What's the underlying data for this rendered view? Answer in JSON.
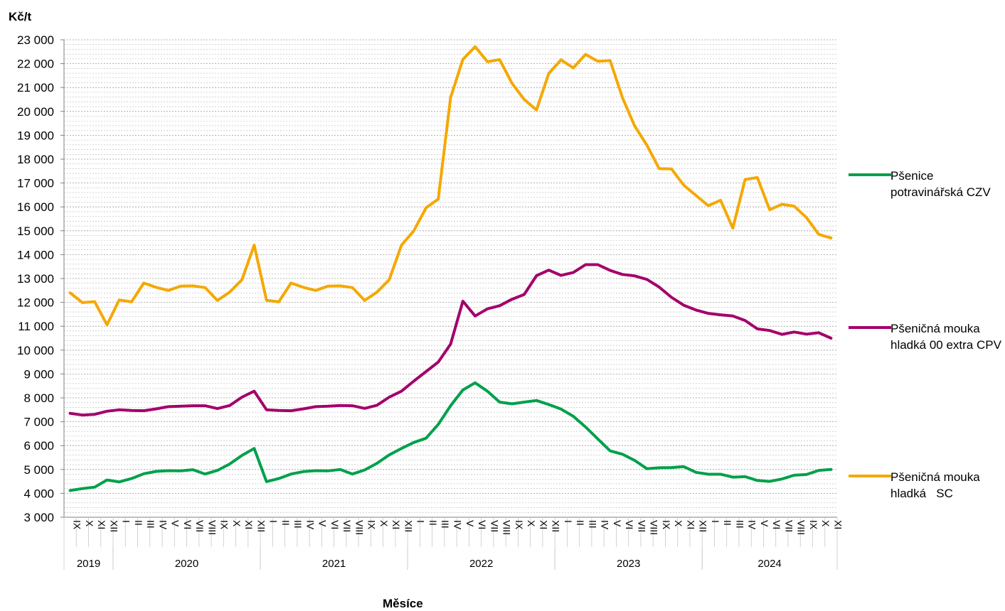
{
  "chart_data": {
    "type": "line",
    "ylabel": "Kč/t",
    "xlabel": "Měsíce",
    "ylim": [
      3000,
      23000
    ],
    "ytick_step": 1000,
    "y_tick_labels": [
      "3 000",
      "4 000",
      "5 000",
      "6 000",
      "7 000",
      "8 000",
      "9 000",
      "10 000",
      "11 000",
      "12 000",
      "13 000",
      "14 000",
      "15 000",
      "16 000",
      "17 000",
      "18 000",
      "19 000",
      "20 000",
      "21 000",
      "22 000",
      "23 000"
    ],
    "grid": "horizontal dashed minor lines",
    "legend_position": "right",
    "months": [
      "IX",
      "X",
      "XI",
      "XII",
      "I",
      "II",
      "III",
      "IV",
      "V",
      "VI",
      "VII",
      "VIII",
      "IX",
      "X",
      "XI",
      "XII",
      "I",
      "II",
      "III",
      "IV",
      "V",
      "VI",
      "VII",
      "VIII",
      "IX",
      "X",
      "XI",
      "XII",
      "I",
      "II",
      "III",
      "IV",
      "V",
      "VI",
      "VII",
      "VIII",
      "IX",
      "X",
      "XI",
      "XII",
      "I",
      "II",
      "III",
      "IV",
      "V",
      "VI",
      "VII",
      "VIII",
      "IX",
      "X",
      "XI",
      "XII",
      "I",
      "II",
      "III",
      "IV",
      "V",
      "VI",
      "VII",
      "VIII",
      "IX",
      "X",
      "XI"
    ],
    "years": [
      {
        "label": "2019",
        "start": 0,
        "count": 4
      },
      {
        "label": "2020",
        "start": 4,
        "count": 12
      },
      {
        "label": "2021",
        "start": 16,
        "count": 12
      },
      {
        "label": "2022",
        "start": 28,
        "count": 12
      },
      {
        "label": "2023",
        "start": 40,
        "count": 12
      },
      {
        "label": "2024",
        "start": 52,
        "count": 11
      }
    ],
    "series": [
      {
        "name": "Pšenice potravinářská CZV",
        "color": "#00a04b",
        "values": [
          4120,
          4200,
          4260,
          4560,
          4480,
          4620,
          4820,
          4920,
          4950,
          4940,
          4990,
          4810,
          4960,
          5230,
          5590,
          5880,
          4490,
          4620,
          4810,
          4910,
          4950,
          4940,
          5000,
          4810,
          4980,
          5260,
          5610,
          5880,
          6130,
          6310,
          6890,
          7670,
          8330,
          8630,
          8280,
          7820,
          7750,
          7820,
          7890,
          7720,
          7530,
          7230,
          6780,
          6280,
          5780,
          5640,
          5380,
          5030,
          5070,
          5080,
          5120,
          4880,
          4800,
          4800,
          4680,
          4700,
          4540,
          4500,
          4600,
          4760,
          4790,
          4960,
          5000
        ]
      },
      {
        "name": "Pšeničná mouka hladká 00 extra CPV",
        "color": "#a3006a",
        "values": [
          7350,
          7280,
          7310,
          7440,
          7500,
          7470,
          7460,
          7540,
          7630,
          7650,
          7670,
          7670,
          7550,
          7680,
          8030,
          8280,
          7500,
          7470,
          7460,
          7540,
          7630,
          7650,
          7680,
          7670,
          7560,
          7690,
          8030,
          8280,
          8700,
          9100,
          9500,
          10250,
          12050,
          11430,
          11730,
          11860,
          12130,
          12330,
          13120,
          13350,
          13130,
          13250,
          13580,
          13580,
          13340,
          13170,
          13110,
          12960,
          12640,
          12210,
          11880,
          11680,
          11540,
          11480,
          11430,
          11240,
          10890,
          10820,
          10660,
          10760,
          10670,
          10730,
          10500
        ]
      },
      {
        "name": "Pšeničná mouka hladká   SC",
        "color": "#f5a800",
        "values": [
          12400,
          11990,
          12030,
          11060,
          12100,
          12020,
          12810,
          12630,
          12500,
          12680,
          12690,
          12620,
          12080,
          12430,
          12950,
          14400,
          12090,
          12020,
          12810,
          12630,
          12500,
          12680,
          12690,
          12620,
          12080,
          12430,
          12950,
          14400,
          14990,
          15960,
          16330,
          20580,
          22180,
          22710,
          22080,
          22170,
          21180,
          20500,
          20060,
          21590,
          22160,
          21820,
          22390,
          22100,
          22130,
          20580,
          19390,
          18580,
          17600,
          17590,
          16910,
          16480,
          16050,
          16280,
          15110,
          17150,
          17230,
          15880,
          16110,
          16030,
          15550,
          14850,
          14700
        ]
      }
    ]
  }
}
